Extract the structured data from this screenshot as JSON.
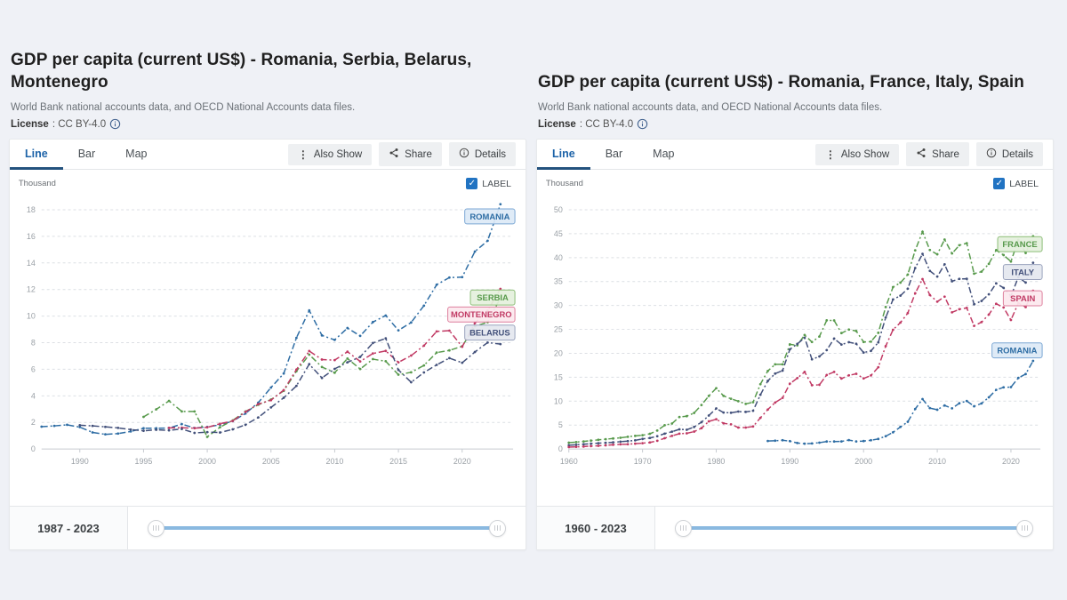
{
  "shared": {
    "subtitle": "World Bank national accounts data, and OECD National Accounts data files.",
    "license_label": "License",
    "license_value": ": CC BY-4.0",
    "tabs": [
      "Line",
      "Bar",
      "Map"
    ],
    "buttons": {
      "also_show": "Also Show",
      "share": "Share",
      "details": "Details"
    },
    "label_checkbox": "LABEL",
    "checkbox_checked": "✓",
    "colors": {
      "accent_blue": "#1d63a8",
      "slider_track": "#8ab9e0",
      "romania_blue": "#2e6da4",
      "green": "#589a4c",
      "crimson": "#c13a64",
      "slate": "#42507a"
    }
  },
  "left_panel": {
    "title": "GDP per capita (current US$) - Romania, Serbia, Belarus, Montenegro",
    "range": "1987 - 2023"
  },
  "right_panel": {
    "title": "GDP per capita (current US$) - Romania, France, Italy, Spain",
    "range": "1960 - 2023"
  },
  "chart_data": [
    {
      "type": "line",
      "title": "GDP per capita (current US$) - Romania, Serbia, Belarus, Montenegro",
      "ylabel": "Thousand",
      "ylim": [
        0,
        18
      ],
      "ytick_step": 2,
      "xlim": [
        1987,
        2024
      ],
      "xticks": [
        1990,
        1995,
        2000,
        2005,
        2010,
        2015,
        2020
      ],
      "grid": true,
      "legend_position": "inline-badges-right",
      "series": [
        {
          "name": "Romania",
          "label": "ROMANIA",
          "color": "#2e6da4",
          "badge_bg": "#dde9f6",
          "badge_border": "#7ba7d4",
          "label_pos": 17.5,
          "start_year": 1987,
          "values": [
            1.68,
            1.74,
            1.82,
            1.65,
            1.25,
            1.1,
            1.16,
            1.32,
            1.56,
            1.56,
            1.58,
            1.87,
            1.58,
            1.66,
            1.82,
            2.1,
            2.67,
            3.49,
            4.62,
            5.68,
            8.36,
            10.43,
            8.55,
            8.21,
            9.1,
            8.51,
            9.55,
            10.04,
            8.93,
            9.52,
            10.79,
            12.36,
            12.9,
            12.93,
            14.86,
            15.67,
            18.42
          ]
        },
        {
          "name": "Serbia",
          "label": "SERBIA",
          "color": "#589a4c",
          "badge_bg": "#e4f0dd",
          "badge_border": "#8cbd77",
          "label_pos": 11.4,
          "start_year": 1995,
          "values": [
            2.42,
            2.98,
            3.62,
            2.83,
            2.83,
            0.91,
            1.64,
            2.15,
            2.83,
            3.33,
            3.72,
            4.38,
            5.85,
            7.1,
            6.17,
            5.74,
            6.81,
            6.02,
            6.76,
            6.6,
            5.59,
            5.77,
            6.29,
            7.25,
            7.42,
            7.73,
            9.23,
            9.54,
            11.36
          ]
        },
        {
          "name": "Montenegro",
          "label": "MONTENEGRO",
          "color": "#c13a64",
          "badge_bg": "#fce8ee",
          "badge_border": "#dd7f9d",
          "label_pos": 10.12,
          "start_year": 1997,
          "values": [
            1.59,
            1.6,
            1.57,
            1.63,
            1.9,
            2.11,
            2.79,
            3.38,
            3.67,
            4.43,
            5.98,
            7.37,
            6.73,
            6.69,
            7.32,
            6.59,
            7.19,
            7.38,
            6.52,
            7.03,
            7.78,
            8.85,
            8.91,
            7.69,
            9.47,
            10.4,
            12.05
          ]
        },
        {
          "name": "Belarus",
          "label": "BELARUS",
          "color": "#42507a",
          "badge_bg": "#e4e7ef",
          "badge_border": "#9aa3bd",
          "label_pos": 8.76,
          "start_year": 1990,
          "values": [
            1.79,
            1.74,
            1.67,
            1.59,
            1.46,
            1.37,
            1.45,
            1.4,
            1.51,
            1.21,
            1.27,
            1.24,
            1.48,
            1.82,
            2.38,
            3.13,
            3.85,
            4.75,
            6.38,
            5.35,
            6.03,
            6.52,
            6.93,
            7.98,
            8.32,
            5.95,
            5.02,
            5.76,
            6.33,
            6.84,
            6.49,
            7.3,
            8.01,
            7.89
          ]
        }
      ]
    },
    {
      "type": "line",
      "title": "GDP per capita (current US$) - Romania, France, Italy, Spain",
      "ylabel": "Thousand",
      "ylim": [
        0,
        50
      ],
      "ytick_step": 5,
      "xlim": [
        1960,
        2024
      ],
      "xticks": [
        1960,
        1970,
        1980,
        1990,
        2000,
        2010,
        2020
      ],
      "grid": true,
      "legend_position": "inline-badges-right",
      "series": [
        {
          "name": "France",
          "label": "FRANCE",
          "color": "#589a4c",
          "badge_bg": "#e4f0dd",
          "badge_border": "#8cbd77",
          "label_pos": 42.8,
          "start_year": 1960,
          "values": [
            1.33,
            1.43,
            1.58,
            1.75,
            1.92,
            2.04,
            2.19,
            2.34,
            2.54,
            2.75,
            2.87,
            3.17,
            3.86,
            4.97,
            5.32,
            6.69,
            6.87,
            7.52,
            9.19,
            11.08,
            12.71,
            11.1,
            10.49,
            9.99,
            9.42,
            9.77,
            13.55,
            16.31,
            17.69,
            17.69,
            21.87,
            21.68,
            23.81,
            22.36,
            23.5,
            26.89,
            26.87,
            24.23,
            24.97,
            24.67,
            22.36,
            22.43,
            24.28,
            29.66,
            33.84,
            34.76,
            36.45,
            41.51,
            45.41,
            41.58,
            40.68,
            43.79,
            40.87,
            42.59,
            43.01,
            36.65,
            37.06,
            38.69,
            41.56,
            40.53,
            39.18,
            43.67,
            40.96,
            44.46
          ]
        },
        {
          "name": "Italy",
          "label": "ITALY",
          "color": "#42507a",
          "badge_bg": "#e4e7ef",
          "badge_border": "#9aa3bd",
          "label_pos": 37.0,
          "start_year": 1960,
          "values": [
            0.8,
            0.89,
            0.99,
            1.13,
            1.22,
            1.3,
            1.41,
            1.53,
            1.65,
            1.81,
            2.11,
            2.3,
            2.67,
            3.21,
            3.62,
            4.11,
            4.03,
            4.6,
            5.61,
            6.99,
            8.46,
            7.62,
            7.56,
            7.83,
            7.74,
            7.99,
            11.32,
            14.23,
            15.75,
            16.39,
            20.83,
            21.96,
            23.24,
            18.74,
            19.34,
            20.66,
            23.08,
            21.83,
            22.32,
            21.99,
            20.14,
            20.49,
            22.27,
            27.47,
            31.26,
            32.04,
            33.5,
            37.82,
            40.78,
            37.23,
            36.03,
            38.6,
            35.05,
            35.55,
            35.57,
            30.24,
            30.94,
            32.33,
            34.62,
            33.67,
            31.91,
            35.92,
            34.78,
            38.93
          ]
        },
        {
          "name": "Spain",
          "label": "SPAIN",
          "color": "#c13a64",
          "badge_bg": "#fce8ee",
          "badge_border": "#dd7f9d",
          "label_pos": 31.5,
          "start_year": 1960,
          "values": [
            0.4,
            0.45,
            0.52,
            0.61,
            0.67,
            0.77,
            0.89,
            0.97,
            0.99,
            1.1,
            1.21,
            1.36,
            1.71,
            2.25,
            2.75,
            3.21,
            3.28,
            3.63,
            4.36,
            5.77,
            6.21,
            5.37,
            5.16,
            4.48,
            4.48,
            4.7,
            6.51,
            8.24,
            9.7,
            10.68,
            13.65,
            14.81,
            16.11,
            13.34,
            13.41,
            15.47,
            16.11,
            14.73,
            15.39,
            15.72,
            14.75,
            15.37,
            17.08,
            21.5,
            24.93,
            26.42,
            28.39,
            32.55,
            35.51,
            32.17,
            30.8,
            31.84,
            28.56,
            29.21,
            29.5,
            25.73,
            26.51,
            28.1,
            30.35,
            29.58,
            26.96,
            30.49,
            29.67,
            33.07
          ]
        },
        {
          "name": "Romania",
          "label": "ROMANIA",
          "color": "#2e6da4",
          "badge_bg": "#dde9f6",
          "badge_border": "#7ba7d4",
          "label_pos": 20.6,
          "start_year": 1987,
          "values": [
            1.68,
            1.74,
            1.82,
            1.65,
            1.25,
            1.1,
            1.16,
            1.32,
            1.56,
            1.56,
            1.58,
            1.87,
            1.58,
            1.66,
            1.82,
            2.1,
            2.67,
            3.49,
            4.62,
            5.68,
            8.36,
            10.43,
            8.55,
            8.21,
            9.1,
            8.51,
            9.55,
            10.04,
            8.93,
            9.52,
            10.79,
            12.36,
            12.9,
            12.93,
            14.86,
            15.67,
            18.42
          ]
        }
      ]
    }
  ]
}
